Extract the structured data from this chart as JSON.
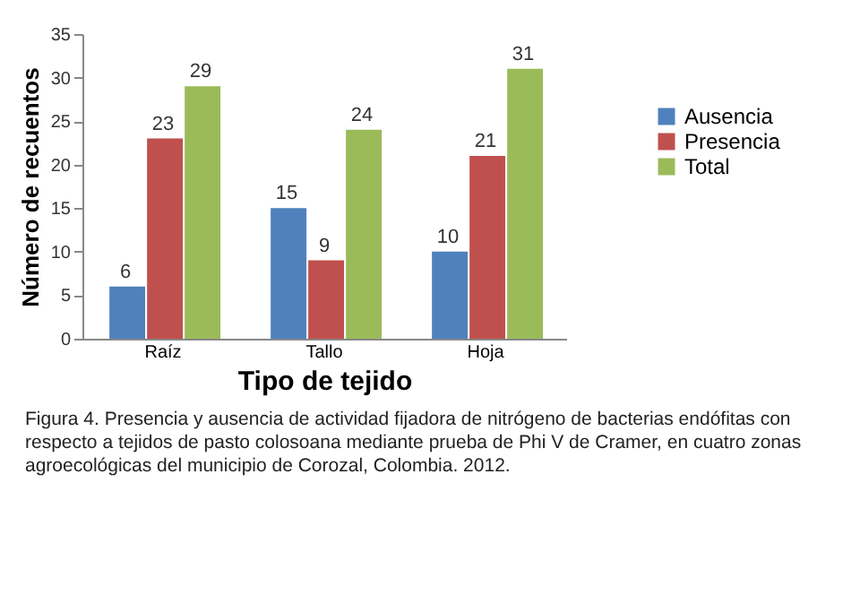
{
  "chart_data": {
    "type": "bar",
    "xlabel": "Tipo de tejido",
    "ylabel": "Número de recuentos",
    "categories": [
      "Raíz",
      "Tallo",
      "Hoja"
    ],
    "series": [
      {
        "name": "Ausencia",
        "color": "#4f81bd",
        "values": [
          6,
          15,
          10
        ]
      },
      {
        "name": "Presencia",
        "color": "#c0504d",
        "values": [
          23,
          9,
          21
        ]
      },
      {
        "name": "Total",
        "color": "#9bbb59",
        "values": [
          29,
          24,
          31
        ]
      }
    ],
    "ylim": [
      0,
      35
    ],
    "yticks": [
      0,
      5,
      10,
      15,
      20,
      25,
      30,
      35
    ],
    "data_labels": true,
    "legend": "right",
    "annotations": [
      "Figura 4.   Presencia y ausencia de actividad fijadora de nitrógeno de bacterias endófitas con respecto a tejidos de pasto colosoana mediante prueba de Phi V de Cramer, en cuatro zonas agroecológicas del municipio de Corozal, Colombia. 2012."
    ]
  }
}
